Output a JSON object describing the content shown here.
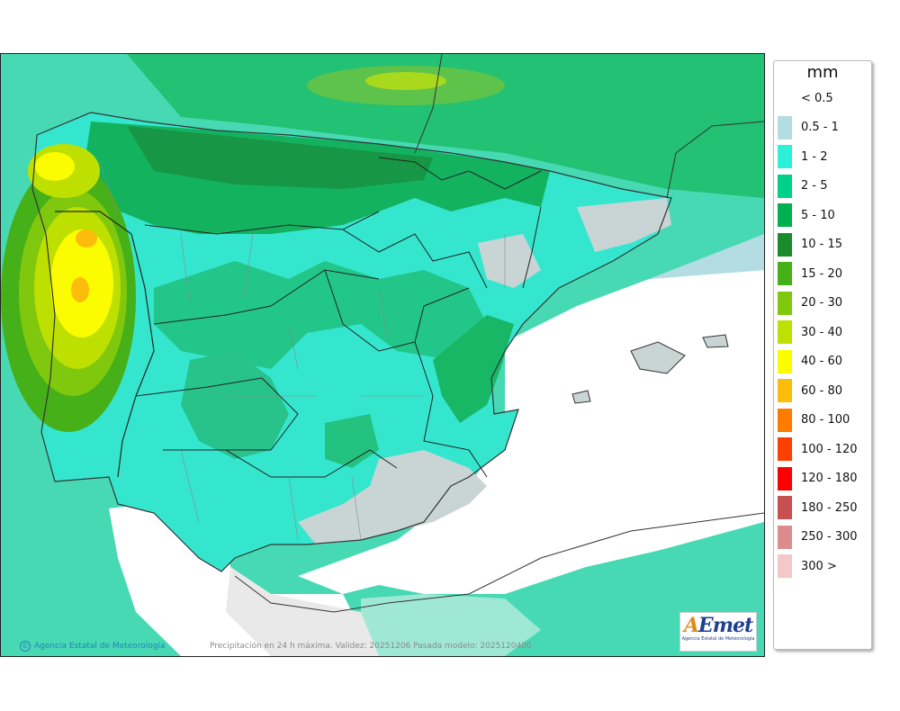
{
  "legend": {
    "unit": "mm",
    "items": [
      {
        "label": "< 0.5",
        "color": "#ffffff"
      },
      {
        "label": "0.5 - 1",
        "color": "#b3dde3"
      },
      {
        "label": "1 - 2",
        "color": "#2cf0d8"
      },
      {
        "label": "2 - 5",
        "color": "#00d08a"
      },
      {
        "label": "5 - 10",
        "color": "#00b050"
      },
      {
        "label": "10 - 15",
        "color": "#1a8a2a"
      },
      {
        "label": "15 - 20",
        "color": "#46b019"
      },
      {
        "label": "20 - 30",
        "color": "#80c80e"
      },
      {
        "label": "30 - 40",
        "color": "#bde000"
      },
      {
        "label": "40 - 60",
        "color": "#fcfc00"
      },
      {
        "label": "60 - 80",
        "color": "#fcbc0c"
      },
      {
        "label": "80 - 100",
        "color": "#fc7c00"
      },
      {
        "label": "100 - 120",
        "color": "#fc4000"
      },
      {
        "label": "120 - 180",
        "color": "#fc0000"
      },
      {
        "label": "180 - 250",
        "color": "#c85050"
      },
      {
        "label": "250 - 300",
        "color": "#dc8c8c"
      },
      {
        "label": "300 >",
        "color": "#f2c8c8"
      }
    ]
  },
  "footer": {
    "credit": "Agencia Estatal de Meteorología",
    "caption": "Precipitación en 24 h máxima. Validez: 20251206 Pasada modelo: 2025120400"
  },
  "logo": {
    "mark_a": "A",
    "mark_rest": "Emet",
    "sub": "Agencia Estatal de Meteorología"
  }
}
